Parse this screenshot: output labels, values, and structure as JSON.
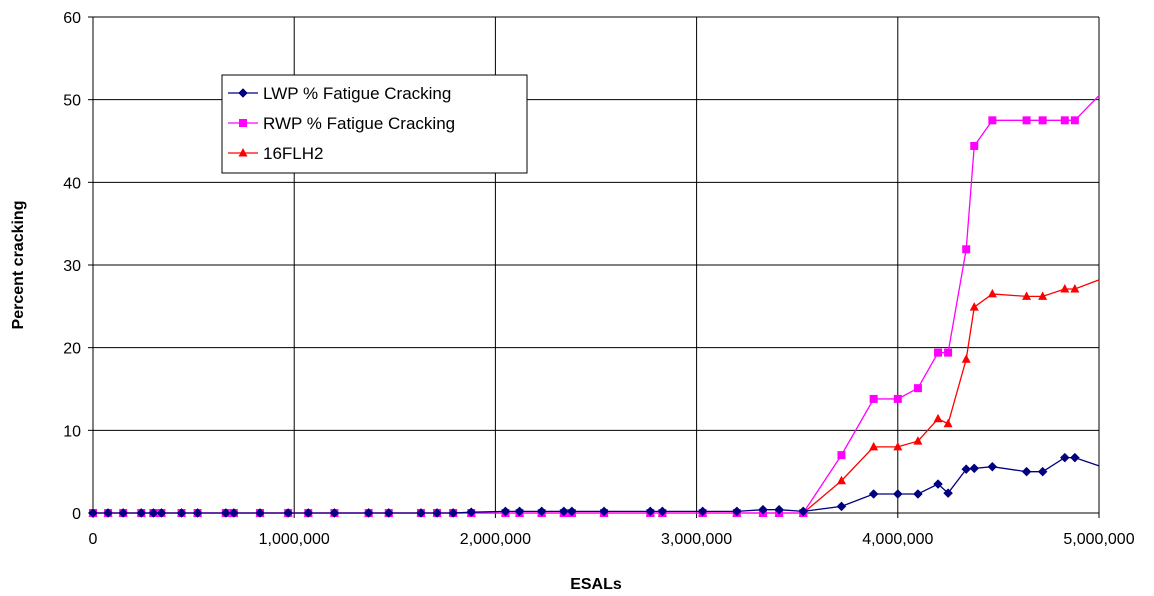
{
  "chart_data": {
    "type": "line",
    "title": "",
    "xlabel": "ESALs",
    "ylabel": "Percent cracking",
    "xlim": [
      0,
      5000000
    ],
    "ylim": [
      0,
      60
    ],
    "x_ticks": [
      0,
      1000000,
      2000000,
      3000000,
      4000000,
      5000000
    ],
    "x_tick_labels": [
      "0",
      "1,000,000",
      "2,000,000",
      "3,000,000",
      "4,000,000",
      "5,000,000"
    ],
    "y_ticks": [
      0,
      10,
      20,
      30,
      40,
      50,
      60
    ],
    "y_tick_labels": [
      "0",
      "10",
      "20",
      "30",
      "40",
      "50",
      "60"
    ],
    "grid": true,
    "legend_position": "upper-left inside plot",
    "series": [
      {
        "name": "LWP % Fatigue Cracking",
        "color": "#000080",
        "marker": "diamond",
        "points": [
          [
            0,
            0
          ],
          [
            75000,
            0
          ],
          [
            150000,
            0
          ],
          [
            240000,
            0
          ],
          [
            300000,
            0
          ],
          [
            340000,
            0
          ],
          [
            440000,
            0
          ],
          [
            520000,
            0
          ],
          [
            660000,
            0
          ],
          [
            700000,
            0
          ],
          [
            830000,
            0
          ],
          [
            970000,
            0
          ],
          [
            1070000,
            0
          ],
          [
            1200000,
            0
          ],
          [
            1370000,
            0
          ],
          [
            1470000,
            0
          ],
          [
            1630000,
            0
          ],
          [
            1710000,
            0
          ],
          [
            1790000,
            0
          ],
          [
            1880000,
            0.1
          ],
          [
            2050000,
            0.2
          ],
          [
            2120000,
            0.2
          ],
          [
            2230000,
            0.2
          ],
          [
            2340000,
            0.2
          ],
          [
            2380000,
            0.2
          ],
          [
            2540000,
            0.2
          ],
          [
            2770000,
            0.2
          ],
          [
            2830000,
            0.2
          ],
          [
            3030000,
            0.2
          ],
          [
            3200000,
            0.2
          ],
          [
            3330000,
            0.4
          ],
          [
            3410000,
            0.4
          ],
          [
            3530000,
            0.2
          ],
          [
            3720000,
            0.8
          ],
          [
            3880000,
            2.3
          ],
          [
            4000000,
            2.3
          ],
          [
            4100000,
            2.3
          ],
          [
            4200000,
            3.5
          ],
          [
            4250000,
            2.4
          ],
          [
            4340000,
            5.3
          ],
          [
            4380000,
            5.4
          ],
          [
            4470000,
            5.6
          ],
          [
            4640000,
            5.0
          ],
          [
            4720000,
            5.0
          ],
          [
            4830000,
            6.7
          ],
          [
            4880000,
            6.7
          ],
          [
            5000000,
            5.7
          ]
        ]
      },
      {
        "name": "RWP % Fatigue Cracking",
        "color": "#FF00FF",
        "marker": "square",
        "points": [
          [
            0,
            0
          ],
          [
            75000,
            0
          ],
          [
            150000,
            0
          ],
          [
            240000,
            0
          ],
          [
            300000,
            0
          ],
          [
            340000,
            0
          ],
          [
            440000,
            0
          ],
          [
            520000,
            0
          ],
          [
            660000,
            0
          ],
          [
            700000,
            0
          ],
          [
            830000,
            0
          ],
          [
            970000,
            0
          ],
          [
            1070000,
            0
          ],
          [
            1200000,
            0
          ],
          [
            1370000,
            0
          ],
          [
            1470000,
            0
          ],
          [
            1630000,
            0
          ],
          [
            1710000,
            0
          ],
          [
            1790000,
            0
          ],
          [
            1880000,
            0
          ],
          [
            2050000,
            0
          ],
          [
            2120000,
            0
          ],
          [
            2230000,
            0
          ],
          [
            2340000,
            0
          ],
          [
            2380000,
            0
          ],
          [
            2540000,
            0
          ],
          [
            2770000,
            0
          ],
          [
            2830000,
            0
          ],
          [
            3030000,
            0
          ],
          [
            3200000,
            0
          ],
          [
            3330000,
            0
          ],
          [
            3410000,
            0
          ],
          [
            3530000,
            0
          ],
          [
            3720000,
            7.0
          ],
          [
            3880000,
            13.8
          ],
          [
            4000000,
            13.8
          ],
          [
            4100000,
            15.1
          ],
          [
            4200000,
            19.4
          ],
          [
            4250000,
            19.4
          ],
          [
            4340000,
            31.9
          ],
          [
            4380000,
            44.4
          ],
          [
            4470000,
            47.5
          ],
          [
            4640000,
            47.5
          ],
          [
            4720000,
            47.5
          ],
          [
            4830000,
            47.5
          ],
          [
            4880000,
            47.5
          ],
          [
            5000000,
            50.5
          ]
        ]
      },
      {
        "name": "16FLH2",
        "color": "#FF0000",
        "marker": "triangle",
        "points": [
          [
            0,
            0
          ],
          [
            75000,
            0
          ],
          [
            150000,
            0
          ],
          [
            240000,
            0
          ],
          [
            300000,
            0
          ],
          [
            340000,
            0
          ],
          [
            440000,
            0
          ],
          [
            520000,
            0
          ],
          [
            660000,
            0
          ],
          [
            700000,
            0
          ],
          [
            830000,
            0
          ],
          [
            970000,
            0
          ],
          [
            1070000,
            0
          ],
          [
            1200000,
            0
          ],
          [
            1370000,
            0
          ],
          [
            1470000,
            0
          ],
          [
            1630000,
            0
          ],
          [
            1710000,
            0
          ],
          [
            1790000,
            0
          ],
          [
            1880000,
            0
          ],
          [
            2050000,
            0
          ],
          [
            2120000,
            0
          ],
          [
            2230000,
            0
          ],
          [
            2340000,
            0
          ],
          [
            2380000,
            0
          ],
          [
            2540000,
            0
          ],
          [
            2770000,
            0
          ],
          [
            2830000,
            0
          ],
          [
            3030000,
            0
          ],
          [
            3200000,
            0
          ],
          [
            3330000,
            0
          ],
          [
            3410000,
            0
          ],
          [
            3530000,
            0
          ],
          [
            3720000,
            3.9
          ],
          [
            3880000,
            8.0
          ],
          [
            4000000,
            8.0
          ],
          [
            4100000,
            8.7
          ],
          [
            4200000,
            11.4
          ],
          [
            4250000,
            10.8
          ],
          [
            4340000,
            18.6
          ],
          [
            4380000,
            24.9
          ],
          [
            4470000,
            26.5
          ],
          [
            4640000,
            26.2
          ],
          [
            4720000,
            26.2
          ],
          [
            4830000,
            27.1
          ],
          [
            4880000,
            27.1
          ],
          [
            5000000,
            28.2
          ]
        ]
      }
    ]
  }
}
